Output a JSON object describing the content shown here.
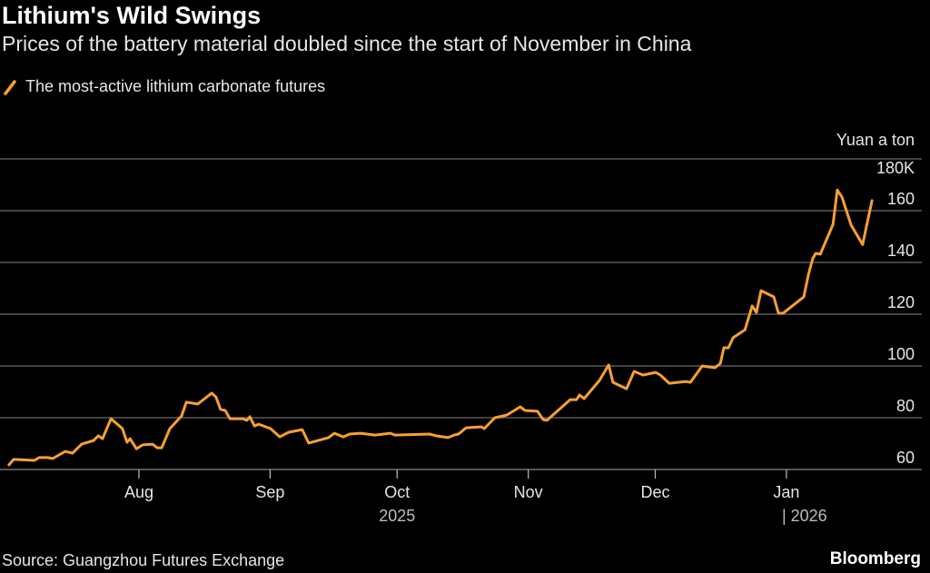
{
  "header": {
    "title": "Lithium's Wild Swings",
    "subtitle": "Prices of the battery material doubled since the start of November in China"
  },
  "footer": {
    "source": "Source: Guangzhou Futures Exchange",
    "brand": "Bloomberg"
  },
  "colors": {
    "line": "#f7a02f",
    "grid": "#6b6b6b",
    "background": "#000000"
  },
  "chart_data": {
    "type": "line",
    "title": "Lithium's Wild Swings",
    "ylabel": "Yuan a ton",
    "ylim": [
      60,
      180
    ],
    "y_ticks": [
      {
        "value": 180,
        "label": "180K"
      },
      {
        "value": 160,
        "label": "160"
      },
      {
        "value": 140,
        "label": "140"
      },
      {
        "value": 120,
        "label": "120"
      },
      {
        "value": 100,
        "label": "100"
      },
      {
        "value": 80,
        "label": "80"
      },
      {
        "value": 60,
        "label": "60"
      }
    ],
    "x_unit": "days since 2025-07-01",
    "x_ticks": [
      {
        "value": 31,
        "label": "Aug"
      },
      {
        "value": 62,
        "label": "Sep"
      },
      {
        "value": 92,
        "label": "Oct"
      },
      {
        "value": 123,
        "label": "Nov"
      },
      {
        "value": 153,
        "label": "Dec"
      },
      {
        "value": 184,
        "label": "Jan"
      }
    ],
    "year_labels": [
      {
        "value": 92,
        "label": "2025"
      },
      {
        "value": 184,
        "label": "2026"
      }
    ],
    "grid": true,
    "legend_position": "top-left",
    "series": [
      {
        "name": "The most-active lithium carbonate futures",
        "x": [
          0.3,
          1.4,
          6.3,
          7.4,
          9.5,
          10.6,
          13.6,
          15.3,
          17.5,
          20.3,
          21.4,
          22.4,
          24.4,
          27.1,
          28.2,
          28.9,
          30.4,
          31.9,
          34.2,
          35.3,
          36.4,
          38.3,
          41.1,
          42.2,
          44.9,
          48.2,
          49.2,
          50.3,
          51.4,
          52.5,
          55.5,
          56.5,
          57.2,
          58.3,
          59.3,
          62.1,
          64.3,
          66.4,
          69.6,
          71.1,
          75.8,
          77.2,
          79.3,
          80.8,
          83.4,
          86.8,
          90.4,
          91.5,
          99.7,
          101.2,
          104,
          105.5,
          106.5,
          108.3,
          111.9,
          112.6,
          115.1,
          117.9,
          119.4,
          121.1,
          122.2,
          125.2,
          126.5,
          127.4,
          132.9,
          134.4,
          135.1,
          136.2,
          139.8,
          142,
          143,
          146.2,
          148,
          150.1,
          153.1,
          154.2,
          156.3,
          160.2,
          161.3,
          164.1,
          167.1,
          168.4,
          169.2,
          170.3,
          171.4,
          174.2,
          175.9,
          176.9,
          178,
          181,
          182.1,
          183.2,
          188.1,
          189.2,
          190.2,
          190.9,
          192,
          195,
          196,
          197.1,
          199.3,
          202,
          204.2
        ],
        "y": [
          61.8,
          63.9,
          63.5,
          64.6,
          64.6,
          64.2,
          67,
          66.3,
          69.8,
          71.2,
          73,
          71.9,
          79.6,
          75.8,
          70.5,
          71.9,
          68,
          69.5,
          69.8,
          68.4,
          68.4,
          75.8,
          80.7,
          86,
          85.3,
          89.5,
          88,
          83.2,
          82.8,
          79.6,
          79.6,
          79,
          80.4,
          76.8,
          77.5,
          75.8,
          72.6,
          74.4,
          75.4,
          70.2,
          72.3,
          74,
          72.6,
          73.7,
          74,
          73.3,
          74,
          73.3,
          73.7,
          73,
          72.3,
          73.3,
          73.7,
          76.1,
          76.5,
          75.8,
          80,
          81,
          82.5,
          84.2,
          82.8,
          82.5,
          79.3,
          79,
          87,
          87,
          88.8,
          87.4,
          94.4,
          100.4,
          93.7,
          91.2,
          97.9,
          96.5,
          97.5,
          96.5,
          93.3,
          94,
          93.7,
          100,
          99.3,
          101,
          107,
          107,
          110.9,
          114,
          123.2,
          120.7,
          129.1,
          126.7,
          120.4,
          120.4,
          126.7,
          135.4,
          141.4,
          143.5,
          143.2,
          154.7,
          168,
          165.3,
          154.4,
          146.9,
          163.9
        ]
      }
    ]
  }
}
